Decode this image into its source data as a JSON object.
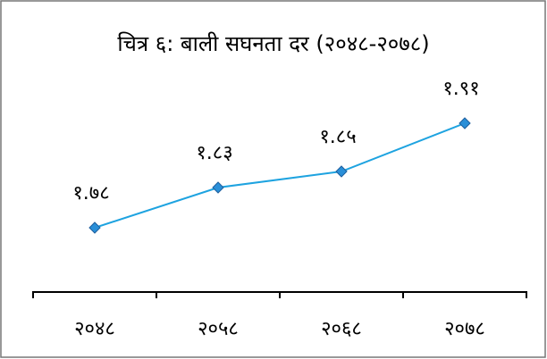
{
  "chart_data": {
    "type": "line",
    "title": "चित्र ६: बाली सघनता दर (२०४८-२०७८)",
    "categories": [
      "२०४८",
      "२०५८",
      "२०६८",
      "२०७८"
    ],
    "values": [
      1.78,
      1.83,
      1.85,
      1.91
    ],
    "value_labels": [
      "१.७८",
      "१.८३",
      "१.८५",
      "१.९१"
    ],
    "color": "#1ea3e0",
    "marker_color": "#2a8fd8",
    "ylim": [
      1.7,
      1.95
    ]
  }
}
